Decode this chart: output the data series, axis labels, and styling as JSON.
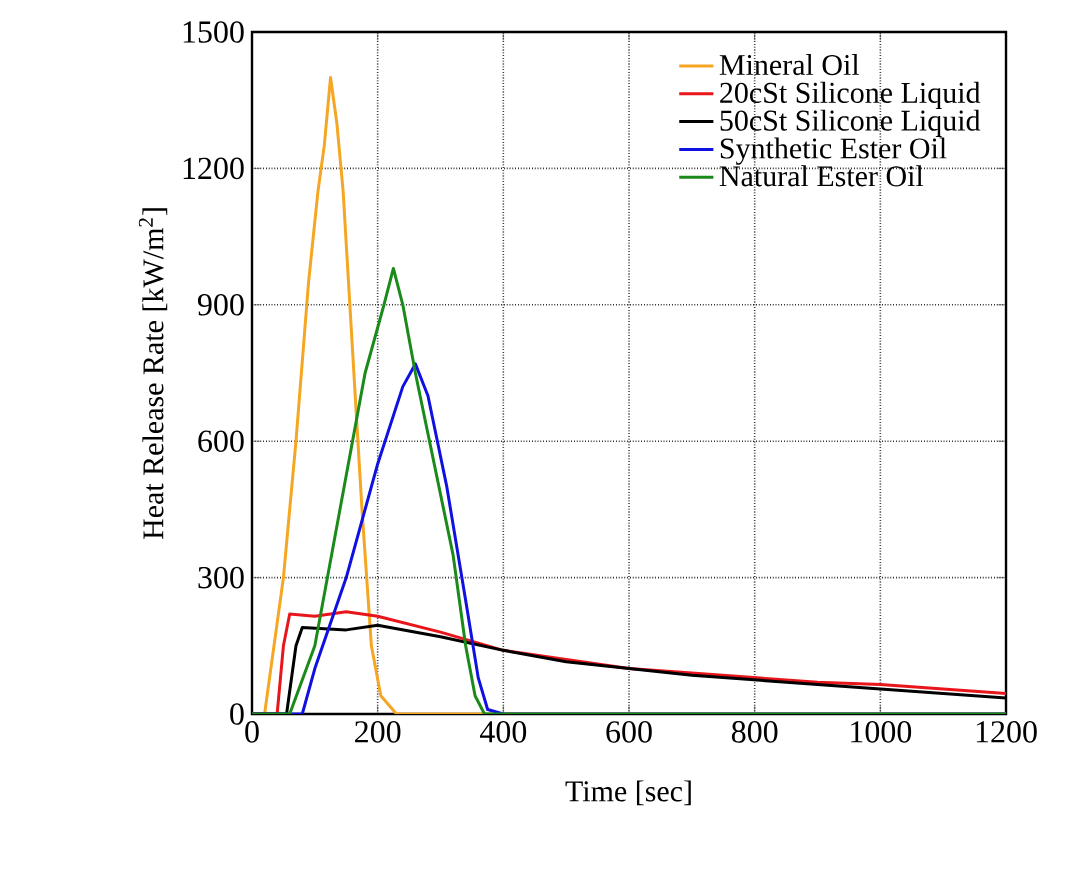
{
  "chart_data": {
    "type": "line",
    "xlabel": "Time [sec]",
    "ylabel": "Heat Release Rate [kW/m$^{2}$]",
    "xlim": [
      0,
      1200
    ],
    "ylim": [
      0,
      1500
    ],
    "xticks": [
      0,
      200,
      400,
      600,
      800,
      1000,
      1200
    ],
    "yticks": [
      0,
      300,
      600,
      900,
      1200,
      1500
    ],
    "grid": true,
    "legend": "top right",
    "marker": "none",
    "line_style": "solid",
    "series": [
      {
        "name": "Mineral Oil",
        "color": "#f5a623",
        "x": [
          0,
          20,
          35,
          50,
          70,
          90,
          105,
          115,
          125,
          135,
          145,
          160,
          175,
          190,
          205,
          230,
          1200
        ],
        "values": [
          0,
          0,
          150,
          300,
          600,
          950,
          1150,
          1250,
          1400,
          1300,
          1150,
          800,
          450,
          150,
          40,
          0,
          0
        ]
      },
      {
        "name": "20cSt Silicone Liquid",
        "color": "#e8161b",
        "x": [
          0,
          40,
          50,
          60,
          100,
          150,
          200,
          300,
          400,
          500,
          600,
          700,
          800,
          900,
          1000,
          1100,
          1200
        ],
        "values": [
          0,
          0,
          150,
          220,
          215,
          225,
          215,
          180,
          140,
          120,
          100,
          90,
          80,
          70,
          65,
          55,
          45
        ]
      },
      {
        "name": "50cSt Silicone Liquid",
        "color": "#000000",
        "x": [
          0,
          55,
          70,
          80,
          150,
          200,
          300,
          400,
          500,
          600,
          700,
          800,
          900,
          1000,
          1100,
          1200
        ],
        "values": [
          0,
          0,
          150,
          190,
          185,
          195,
          170,
          140,
          115,
          100,
          85,
          75,
          65,
          55,
          45,
          35
        ]
      },
      {
        "name": "Synthetic Ester Oil",
        "color": "#1010e0",
        "x": [
          0,
          80,
          100,
          150,
          200,
          240,
          260,
          280,
          310,
          340,
          360,
          375,
          400,
          1200
        ],
        "values": [
          0,
          0,
          100,
          300,
          550,
          720,
          770,
          700,
          500,
          250,
          80,
          10,
          0,
          0
        ]
      },
      {
        "name": "Natural Ester Oil",
        "color": "#1a8a1a",
        "x": [
          0,
          60,
          100,
          140,
          180,
          210,
          225,
          240,
          260,
          290,
          320,
          340,
          355,
          370,
          1200
        ],
        "values": [
          0,
          0,
          150,
          450,
          750,
          900,
          980,
          900,
          750,
          550,
          350,
          150,
          40,
          0,
          0
        ]
      }
    ]
  }
}
